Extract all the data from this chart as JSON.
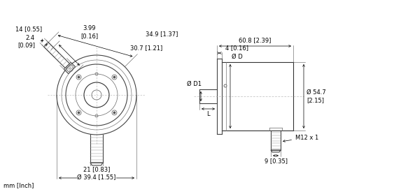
{
  "bg_color": "#ffffff",
  "line_color": "#000000",
  "mm_inch_label": "mm [Inch]",
  "dims_left": {
    "len14": "14 [0.55]",
    "len399": "3.99\n[0.16]",
    "len349": "34.9 [1.37]",
    "len307": "30.7 [1.21]",
    "d_shaft": "2.4\n[0.09]",
    "len21": "21 [0.83]",
    "len394": "Ø 39.4 [1.55]"
  },
  "dims_right": {
    "len608": "60.8 [2.39]",
    "len4": "4 [0.16]",
    "d1": "Ø D1",
    "d": "Ø D",
    "len_l": "L",
    "m12": "M12 x 1",
    "len9": "9 [0.35]",
    "d547": "Ø 54.7\n[2.15]"
  }
}
